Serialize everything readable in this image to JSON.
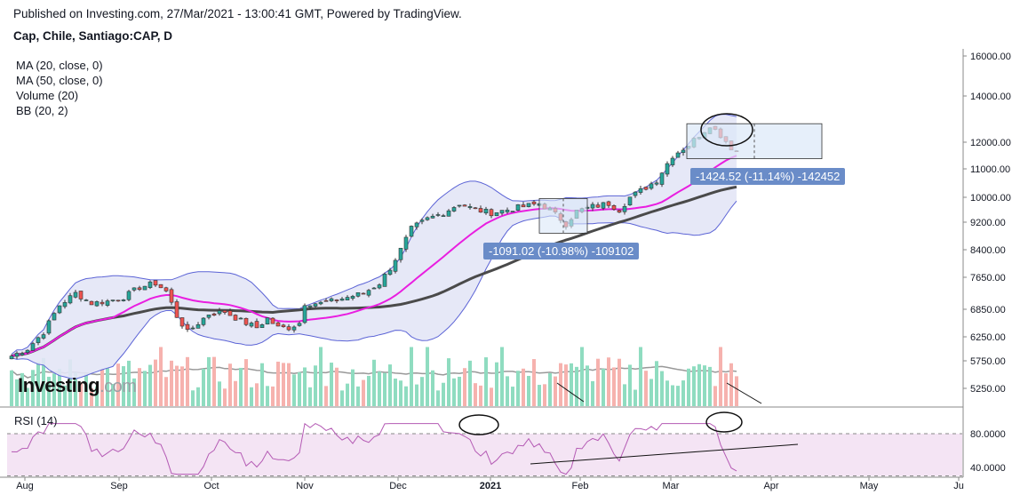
{
  "header": {
    "published": "Published on Investing.com, 27/Mar/2021 - 13:00:41 GMT, Powered by TradingView.",
    "symbol": "Cap, Chile, Santiago:CAP, D"
  },
  "legend": [
    "MA (20, close, 0)",
    "MA (50, close, 0)",
    "Volume (20)",
    "BB (20, 2)"
  ],
  "brand": {
    "main": "Investing",
    "suffix": ".com"
  },
  "rsi_label": "RSI (14)",
  "measurements": [
    {
      "text": "-1091.02 (-10.98%) -109102"
    },
    {
      "text": "-1424.52 (-11.14%) -142452"
    }
  ],
  "colors": {
    "up": "#26a69a",
    "down": "#ef5350",
    "ma20": "#e91ee0",
    "ma50": "#4a4a4a",
    "bb": "#5c64d6",
    "bb_fill": "#e3e5f6",
    "vol_up": "#8fdcc0",
    "vol_down": "#f6b2ae",
    "rsi": "#b45ab4",
    "rsi_fill": "#f4e4f4",
    "measure": "#6a8cc8"
  },
  "chart_data": {
    "type": "candlestick",
    "x_labels": [
      "Aug",
      "Sep",
      "Oct",
      "Nov",
      "Dec",
      "2021",
      "Feb",
      "Mar",
      "Apr",
      "May",
      "Ju"
    ],
    "y_ticks": [
      5250,
      5750,
      6250,
      6850,
      7650,
      8400,
      9200,
      10000,
      11000,
      12000,
      14000,
      16000
    ],
    "y_tick_labels": [
      "5250.00",
      "5750.00",
      "6250.00",
      "6850.00",
      "7650.00",
      "8400.00",
      "9200.00",
      "10000.00",
      "11000.00",
      "12000.00",
      "14000.00",
      "16000.00"
    ],
    "rsi_ticks": [
      80,
      40
    ],
    "rsi_tick_labels": [
      "80.0000",
      "40.0000"
    ],
    "price_path": [
      [
        0,
        5850
      ],
      [
        3,
        6000
      ],
      [
        6,
        6350
      ],
      [
        9,
        6950
      ],
      [
        12,
        7250
      ],
      [
        15,
        7000
      ],
      [
        18,
        7050
      ],
      [
        21,
        7150
      ],
      [
        24,
        7400
      ],
      [
        27,
        7500
      ],
      [
        29,
        7300
      ],
      [
        31,
        6700
      ],
      [
        33,
        6350
      ],
      [
        35,
        6550
      ],
      [
        37,
        6750
      ],
      [
        40,
        6800
      ],
      [
        43,
        6600
      ],
      [
        46,
        6450
      ],
      [
        48,
        6650
      ],
      [
        50,
        6450
      ],
      [
        52,
        6450
      ],
      [
        54,
        6550
      ],
      [
        55,
        7000
      ],
      [
        58,
        7000
      ],
      [
        60,
        7050
      ],
      [
        63,
        7150
      ],
      [
        66,
        7250
      ],
      [
        69,
        7500
      ],
      [
        71,
        7900
      ],
      [
        73,
        8400
      ],
      [
        75,
        9000
      ],
      [
        78,
        9300
      ],
      [
        81,
        9500
      ],
      [
        84,
        9800
      ],
      [
        87,
        9600
      ],
      [
        90,
        9500
      ],
      [
        93,
        9600
      ],
      [
        96,
        9700
      ],
      [
        99,
        9800
      ],
      [
        101,
        9600
      ],
      [
        103,
        9300
      ],
      [
        104,
        9150
      ],
      [
        106,
        9550
      ],
      [
        109,
        9700
      ],
      [
        112,
        9800
      ],
      [
        114,
        9600
      ],
      [
        116,
        10000
      ],
      [
        119,
        10350
      ],
      [
        121,
        10600
      ],
      [
        124,
        11500
      ],
      [
        127,
        11900
      ],
      [
        130,
        12500
      ],
      [
        131,
        12750
      ],
      [
        133,
        12300
      ],
      [
        135,
        11800
      ],
      [
        136,
        11650
      ]
    ],
    "measures": [
      {
        "high": 9960,
        "low": 8880,
        "change": -1091.02,
        "pct": -10.98
      },
      {
        "high": 12800,
        "low": 11380,
        "change": -1424.52,
        "pct": -11.14
      }
    ]
  }
}
